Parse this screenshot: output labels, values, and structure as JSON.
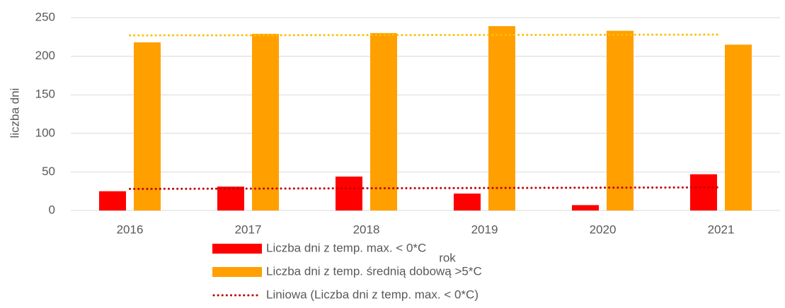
{
  "chart_data": {
    "type": "bar",
    "categories": [
      "2016",
      "2017",
      "2018",
      "2019",
      "2020",
      "2021"
    ],
    "series": [
      {
        "name": "Liczba dni z temp. max. < 0*C",
        "color": "#ff0000",
        "kind": "bar",
        "values": [
          25,
          31,
          44,
          22,
          7,
          47
        ]
      },
      {
        "name": "Liczba dni z temp. średnią dobową >5*C",
        "color": "#ffa000",
        "kind": "bar",
        "values": [
          218,
          229,
          230,
          239,
          233,
          215
        ]
      },
      {
        "name": "Liniowa (Liczba dni z temp. max. < 0*C)",
        "color": "#c00000",
        "kind": "line",
        "dash": "dotted",
        "values": [
          28,
          28.4,
          28.8,
          29.2,
          29.6,
          30
        ]
      },
      {
        "color": "#ffc000",
        "kind": "line",
        "dash": "dotted",
        "values": [
          227,
          227.2,
          227.4,
          227.6,
          227.8,
          228
        ]
      }
    ],
    "xlabel": "rok",
    "ylabel": "liczba dni",
    "ylim": [
      0,
      250
    ],
    "yticks": [
      0,
      50,
      100,
      150,
      200,
      250
    ],
    "grid": true,
    "legend": "bottom"
  }
}
